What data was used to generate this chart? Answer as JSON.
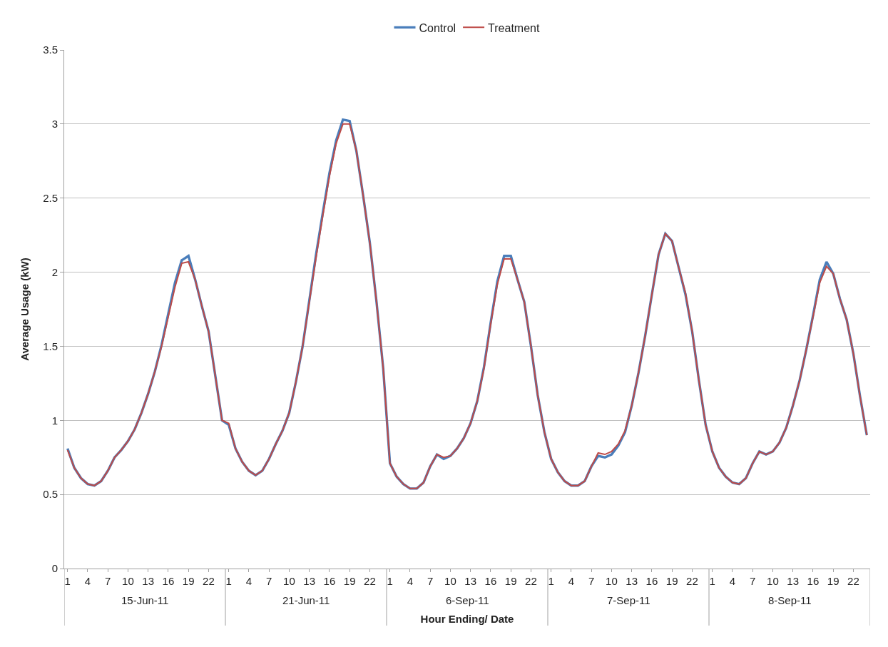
{
  "chart_data": {
    "type": "line",
    "xlabel": "Hour Ending/ Date",
    "ylabel": "Average Usage (kW)",
    "categories": [
      "1",
      null,
      null,
      "4",
      null,
      null,
      "7",
      null,
      null,
      "10",
      null,
      null,
      "13",
      null,
      null,
      "16",
      null,
      null,
      "19",
      null,
      null,
      "22",
      null,
      null,
      "1",
      null,
      null,
      "4",
      null,
      null,
      "7",
      null,
      null,
      "10",
      null,
      null,
      "13",
      null,
      null,
      "16",
      null,
      null,
      "19",
      null,
      null,
      "22",
      null,
      null,
      "1",
      null,
      null,
      "4",
      null,
      null,
      "7",
      null,
      null,
      "10",
      null,
      null,
      "13",
      null,
      null,
      "16",
      null,
      null,
      "19",
      null,
      null,
      "22",
      null,
      null,
      "1",
      null,
      null,
      "4",
      null,
      null,
      "7",
      null,
      null,
      "10",
      null,
      null,
      "13",
      null,
      null,
      "16",
      null,
      null,
      "19",
      null,
      null,
      "22",
      null,
      null,
      "1",
      null,
      null,
      "4",
      null,
      null,
      "7",
      null,
      null,
      "10",
      null,
      null,
      "13",
      null,
      null,
      "16",
      null,
      null,
      "19",
      null,
      null,
      "22",
      null,
      null
    ],
    "series": [
      {
        "name": "Control",
        "color": "#4a7ebb",
        "values": [
          0.81,
          0.68,
          0.61,
          0.57,
          0.56,
          0.59,
          0.66,
          0.75,
          0.8,
          0.86,
          0.94,
          1.05,
          1.18,
          1.33,
          1.51,
          1.72,
          1.93,
          2.08,
          2.11,
          1.95,
          1.77,
          1.6,
          1.3,
          1.0,
          0.97,
          0.81,
          0.72,
          0.66,
          0.63,
          0.66,
          0.74,
          0.84,
          0.93,
          1.05,
          1.26,
          1.5,
          1.81,
          2.12,
          2.4,
          2.67,
          2.89,
          3.03,
          3.02,
          2.82,
          2.52,
          2.2,
          1.8,
          1.35,
          0.71,
          0.62,
          0.57,
          0.54,
          0.54,
          0.58,
          0.69,
          0.77,
          0.74,
          0.76,
          0.81,
          0.88,
          0.98,
          1.13,
          1.36,
          1.66,
          1.94,
          2.11,
          2.11,
          1.95,
          1.8,
          1.5,
          1.17,
          0.92,
          0.74,
          0.65,
          0.59,
          0.56,
          0.56,
          0.59,
          0.69,
          0.76,
          0.75,
          0.77,
          0.83,
          0.92,
          1.1,
          1.32,
          1.57,
          1.85,
          2.12,
          2.26,
          2.21,
          2.03,
          1.85,
          1.6,
          1.27,
          0.97,
          0.79,
          0.68,
          0.62,
          0.58,
          0.57,
          0.61,
          0.71,
          0.79,
          0.77,
          0.79,
          0.85,
          0.95,
          1.1,
          1.27,
          1.48,
          1.71,
          1.95,
          2.07,
          1.99,
          1.82,
          1.68,
          1.45,
          1.16,
          0.9
        ]
      },
      {
        "name": "Treatment",
        "color": "#be4b48",
        "values": [
          0.8,
          0.68,
          0.61,
          0.57,
          0.56,
          0.59,
          0.66,
          0.75,
          0.8,
          0.86,
          0.94,
          1.05,
          1.18,
          1.33,
          1.5,
          1.7,
          1.9,
          2.06,
          2.07,
          1.95,
          1.77,
          1.6,
          1.3,
          1.0,
          0.98,
          0.81,
          0.72,
          0.66,
          0.63,
          0.66,
          0.74,
          0.84,
          0.93,
          1.05,
          1.26,
          1.5,
          1.8,
          2.1,
          2.38,
          2.65,
          2.87,
          3.0,
          3.0,
          2.82,
          2.52,
          2.2,
          1.8,
          1.35,
          0.71,
          0.62,
          0.57,
          0.54,
          0.54,
          0.58,
          0.69,
          0.77,
          0.75,
          0.76,
          0.81,
          0.88,
          0.98,
          1.13,
          1.35,
          1.65,
          1.92,
          2.09,
          2.09,
          1.95,
          1.8,
          1.5,
          1.17,
          0.92,
          0.74,
          0.65,
          0.59,
          0.56,
          0.56,
          0.59,
          0.69,
          0.78,
          0.77,
          0.79,
          0.84,
          0.93,
          1.1,
          1.32,
          1.57,
          1.85,
          2.12,
          2.26,
          2.21,
          2.03,
          1.86,
          1.6,
          1.27,
          0.97,
          0.79,
          0.68,
          0.62,
          0.58,
          0.57,
          0.61,
          0.71,
          0.79,
          0.77,
          0.79,
          0.85,
          0.95,
          1.1,
          1.27,
          1.48,
          1.7,
          1.93,
          2.04,
          1.99,
          1.82,
          1.68,
          1.45,
          1.16,
          0.9
        ]
      }
    ],
    "ylim": [
      0,
      3.5
    ],
    "yticks": [
      0,
      0.5,
      1,
      1.5,
      2,
      2.5,
      3,
      3.5
    ],
    "grid": "y",
    "legend": "top",
    "marker": "none",
    "line_style": "solid",
    "annotations": [
      "15-Jun-11",
      "21-Jun-11",
      "6-Sep-11",
      "7-Sep-11",
      "8-Sep-11"
    ]
  }
}
